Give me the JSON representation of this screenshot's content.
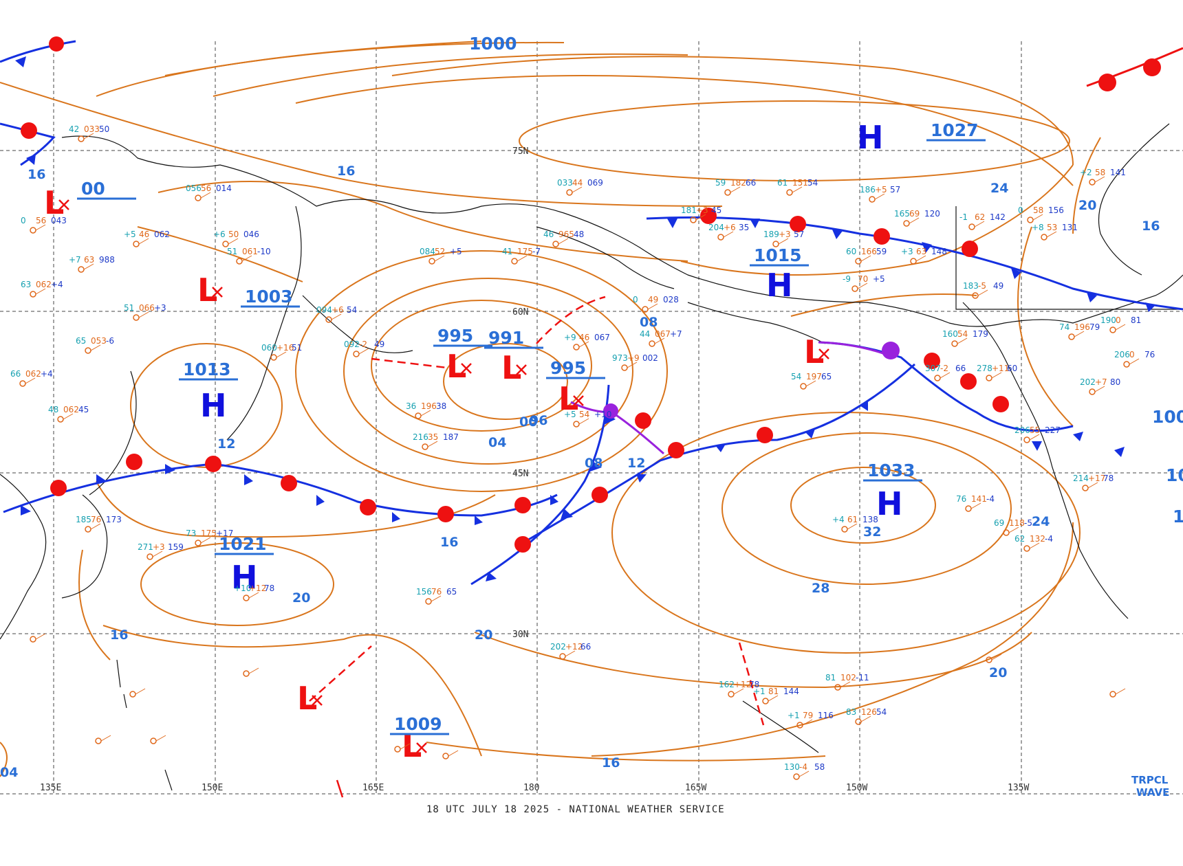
{
  "caption": "18 UTC JULY 18 2025 - NATIONAL WEATHER SERVICE",
  "colors": {
    "isobar": "#d9751c",
    "high": "#1010dd",
    "low": "#ee1111",
    "cold_front": "#1530e0",
    "warm_front": "#ee1111",
    "occluded": "#9922dd",
    "coastline": "#111111",
    "grid": "#444444",
    "label_blue": "#2a6fd6"
  },
  "longitude_labels": [
    "135E",
    "150E",
    "165E",
    "180",
    "165W",
    "150W",
    "135W"
  ],
  "latitude_labels": [
    "75N",
    "60N",
    "45N",
    "30N"
  ],
  "pressure_centers": [
    {
      "type": "H",
      "value": "1027"
    },
    {
      "type": "H",
      "value": "1015"
    },
    {
      "type": "H",
      "value": "1013"
    },
    {
      "type": "H",
      "value": "1021"
    },
    {
      "type": "H",
      "value": "1033"
    },
    {
      "type": "L",
      "value": "995"
    },
    {
      "type": "L",
      "value": "991"
    },
    {
      "type": "L",
      "value": "995"
    },
    {
      "type": "L",
      "value": "1003"
    },
    {
      "type": "L",
      "value": "1009"
    },
    {
      "type": "L",
      "value": "00"
    },
    {
      "type": "L",
      "value": ""
    },
    {
      "type": "L",
      "value": ""
    }
  ],
  "isobar_labels": [
    "16",
    "24",
    "20",
    "16",
    "08",
    "12",
    "96",
    "00",
    "04",
    "08",
    "12",
    "16",
    "20",
    "16",
    "16",
    "20",
    "32",
    "28",
    "24",
    "20",
    "16",
    "04"
  ],
  "map_partial_texts": [
    "1000",
    "100",
    "10",
    "1"
  ],
  "station_labels": [
    "42",
    "033",
    "50",
    "056",
    "56",
    "014",
    "+5",
    "46",
    "062",
    "+6",
    "50",
    "046",
    "0",
    "56",
    "043",
    "+7",
    "63",
    "988",
    "63",
    "062",
    "+4",
    "51",
    "066",
    "+3",
    "51",
    "061",
    "-10",
    "65",
    "053",
    "-6",
    "66",
    "062",
    "+4",
    "48",
    "062",
    "45",
    "094",
    "+6",
    "54",
    "060",
    "+16",
    "51",
    "092",
    "-2",
    "49",
    "084",
    "52",
    "+5",
    "41",
    "175",
    "-7",
    "46",
    "965",
    "48",
    "033",
    "44",
    "069",
    "+9",
    "46",
    "067",
    "0",
    "49",
    "028",
    "44",
    "067",
    "+7",
    "973",
    "+9",
    "002",
    "36",
    "196",
    "38",
    "216",
    "35",
    "187",
    "+5",
    "54",
    "+10",
    "59",
    "182",
    "66",
    "61",
    "151",
    "54",
    "186",
    "+5",
    "57",
    "181",
    "+3",
    "45",
    "204",
    "+6",
    "35",
    "189",
    "+3",
    "57",
    "165",
    "69",
    "120",
    "-1",
    "62",
    "142",
    "0",
    "58",
    "156",
    "+2",
    "58",
    "141",
    "+8",
    "53",
    "131",
    "+3",
    "63",
    "148",
    "-9",
    "70",
    "+5",
    "60",
    "166",
    "59",
    "183",
    "-5",
    "49",
    "160",
    "54",
    "179",
    "54",
    "197",
    "65",
    "307",
    "-2",
    "66",
    "278",
    "+11",
    "60",
    "206",
    "55",
    "227",
    "+4",
    "61",
    "138",
    "69",
    "118",
    "-5",
    "62",
    "132",
    "-4",
    "76",
    "141",
    "-4",
    "74",
    "196",
    "79",
    "190",
    "0",
    "81",
    "206",
    "0",
    "76",
    "202",
    "+7",
    "80",
    "214",
    "+17",
    "78",
    "185",
    "76",
    "173",
    "73",
    "175",
    "+17",
    "271",
    "+3",
    "159",
    "+10",
    "+12",
    "78",
    "156",
    "76",
    "65",
    "202",
    "+12",
    "66",
    "162",
    "+12",
    "78",
    "+1",
    "81",
    "144",
    "+1",
    "79",
    "116",
    "81",
    "102",
    "-11",
    "83",
    "126",
    "54",
    "130",
    "-4",
    "58"
  ],
  "trpcl_label": [
    "TRPCL",
    "WAVE"
  ]
}
